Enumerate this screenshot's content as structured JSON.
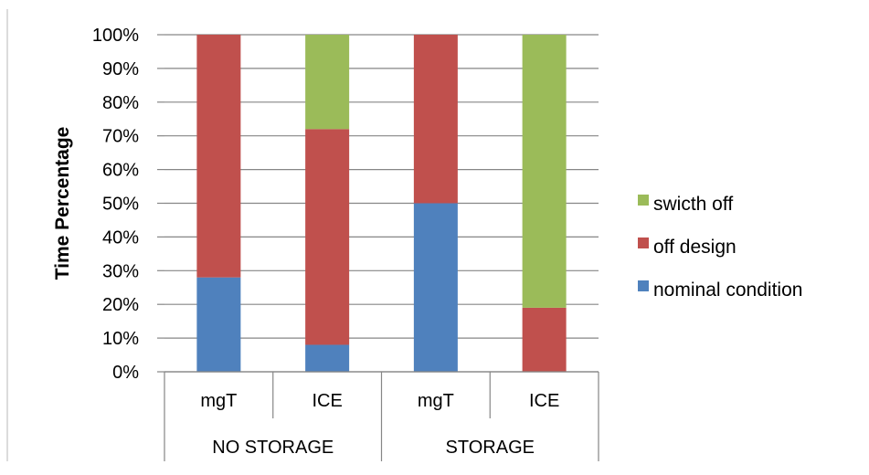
{
  "chart_data": {
    "type": "bar",
    "stacked": true,
    "ylabel": "Time Percentage",
    "ylim": [
      0,
      100
    ],
    "yticks": [
      0,
      10,
      20,
      30,
      40,
      50,
      60,
      70,
      80,
      90,
      100
    ],
    "ytick_suffix": "%",
    "grid": true,
    "legend_position": "right",
    "groups": [
      {
        "label": "NO STORAGE",
        "categories": [
          "mgT",
          "ICE"
        ]
      },
      {
        "label": "STORAGE",
        "categories": [
          "mgT",
          "ICE"
        ]
      }
    ],
    "categories": [
      "mgT",
      "ICE",
      "mgT",
      "ICE"
    ],
    "series": [
      {
        "name": "nominal condition",
        "color": "#4F81BD",
        "values": [
          28,
          8,
          50,
          0
        ]
      },
      {
        "name": "off design",
        "color": "#C0504D",
        "values": [
          72,
          64,
          50,
          19
        ]
      },
      {
        "name": "swicth off",
        "color": "#9BBB59",
        "values": [
          0,
          28,
          0,
          81
        ]
      }
    ],
    "legend_order": [
      "swicth off",
      "off design",
      "nominal condition"
    ]
  }
}
